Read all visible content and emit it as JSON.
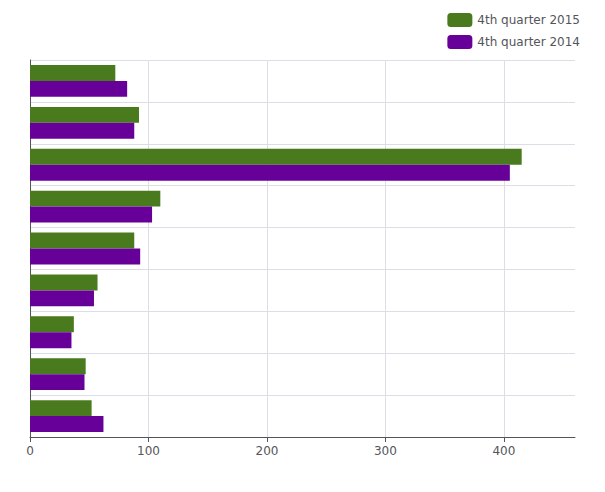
{
  "chart_data": {
    "type": "bar",
    "orientation": "horizontal",
    "categories": [
      null,
      null,
      null,
      null,
      null,
      null,
      null,
      null,
      null
    ],
    "series": [
      {
        "name": "4th quarter 2015",
        "color": "#4a7a1e",
        "values": [
          52,
          47,
          37,
          57,
          88,
          110,
          415,
          92,
          72
        ]
      },
      {
        "name": "4th quarter 2014",
        "color": "#660099",
        "values": [
          62,
          46,
          35,
          54,
          93,
          103,
          405,
          88,
          82
        ]
      }
    ],
    "xlim": [
      0,
      460
    ],
    "xticks": [
      0,
      100,
      200,
      300,
      400
    ],
    "grid": true,
    "legend": "upper right",
    "tick_labels": "x"
  }
}
